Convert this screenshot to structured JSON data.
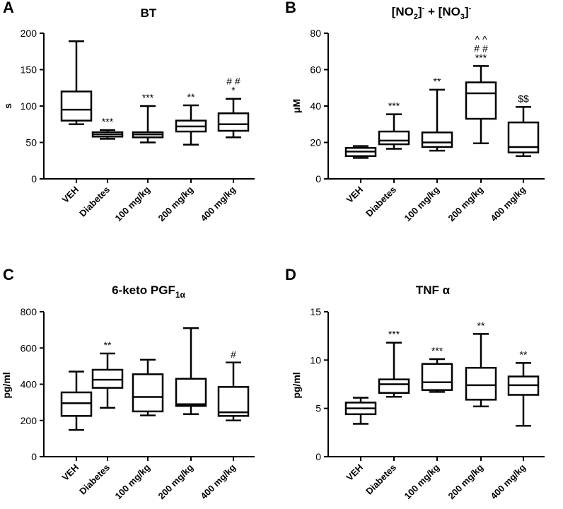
{
  "chart_data": [
    {
      "panel": "A",
      "type": "box",
      "title": "BT",
      "ylabel": "s",
      "ylim": [
        0,
        200
      ],
      "yticks": [
        "0",
        "50",
        "100",
        "150",
        "200"
      ],
      "categories": [
        "VEH",
        "Diabetes",
        "100 mg/kg",
        "200 mg/kg",
        "400 mg/kg"
      ],
      "boxes": [
        {
          "min": 75,
          "q1": 80,
          "median": 95,
          "q3": 120,
          "max": 189
        },
        {
          "min": 55,
          "q1": 58,
          "median": 61,
          "q3": 64,
          "max": 67
        },
        {
          "min": 50,
          "q1": 57,
          "median": 61,
          "q3": 64,
          "max": 100
        },
        {
          "min": 47,
          "q1": 65,
          "median": 72,
          "q3": 80,
          "max": 101
        },
        {
          "min": 57,
          "q1": 66,
          "median": 75,
          "q3": 90,
          "max": 110
        }
      ],
      "annotations": [
        {
          "category": 1,
          "lines": [
            "***"
          ]
        },
        {
          "category": 2,
          "lines": [
            "***"
          ]
        },
        {
          "category": 3,
          "lines": [
            "**"
          ]
        },
        {
          "category": 4,
          "lines": [
            "# #",
            "*"
          ]
        }
      ]
    },
    {
      "panel": "B",
      "type": "box",
      "title": "[NO2]- + [NO3]-",
      "title_parts": {
        "a": "[NO",
        "a_sub": "2",
        "b": "]",
        "b_sup": "-",
        "c": " + [NO",
        "c_sub": "3",
        "d": "]",
        "d_sup": "-"
      },
      "ylabel": "μM",
      "ylim": [
        0,
        80
      ],
      "yticks": [
        "0",
        "20",
        "40",
        "60",
        "80"
      ],
      "categories": [
        "VEH",
        "Diabetes",
        "100 mg/kg",
        "200 mg/kg",
        "400 mg/kg"
      ],
      "boxes": [
        {
          "min": 11.5,
          "q1": 12.5,
          "median": 15,
          "q3": 17,
          "max": 18
        },
        {
          "min": 16.5,
          "q1": 19,
          "median": 21,
          "q3": 26,
          "max": 35.5
        },
        {
          "min": 15.5,
          "q1": 17.5,
          "median": 20,
          "q3": 25.5,
          "max": 49
        },
        {
          "min": 19.5,
          "q1": 33,
          "median": 47,
          "q3": 53,
          "max": 62
        },
        {
          "min": 12.5,
          "q1": 14.5,
          "median": 17.5,
          "q3": 31,
          "max": 39.5
        }
      ],
      "annotations": [
        {
          "category": 1,
          "lines": [
            "***"
          ]
        },
        {
          "category": 2,
          "lines": [
            "**"
          ]
        },
        {
          "category": 3,
          "lines": [
            "^ ^",
            "# #",
            "***"
          ]
        },
        {
          "category": 4,
          "lines": [
            "$$"
          ]
        }
      ]
    },
    {
      "panel": "C",
      "type": "box",
      "title": "6-keto PGF1α",
      "title_parts": {
        "a": "6-keto PGF",
        "a_sub": "1α"
      },
      "ylabel": "pg/ml",
      "ylim": [
        0,
        800
      ],
      "yticks": [
        "0",
        "200",
        "400",
        "600",
        "800"
      ],
      "categories": [
        "VEH",
        "Diabetes",
        "100 mg/kg",
        "200 mg/kg",
        "400 mg/kg"
      ],
      "boxes": [
        {
          "min": 148,
          "q1": 225,
          "median": 295,
          "q3": 355,
          "max": 470
        },
        {
          "min": 270,
          "q1": 380,
          "median": 425,
          "q3": 480,
          "max": 570
        },
        {
          "min": 228,
          "q1": 250,
          "median": 330,
          "q3": 455,
          "max": 535
        },
        {
          "min": 235,
          "q1": 280,
          "median": 290,
          "q3": 430,
          "max": 710
        },
        {
          "min": 200,
          "q1": 225,
          "median": 245,
          "q3": 385,
          "max": 520
        }
      ],
      "annotations": [
        {
          "category": 1,
          "lines": [
            "**"
          ]
        },
        {
          "category": 4,
          "lines": [
            "#"
          ]
        }
      ]
    },
    {
      "panel": "D",
      "type": "box",
      "title": "TNF α",
      "ylabel": "pg/ml",
      "ylim": [
        0,
        15
      ],
      "yticks": [
        "0",
        "5",
        "10",
        "15"
      ],
      "categories": [
        "VEH",
        "Diabetes",
        "100 mg/kg",
        "200 mg/kg",
        "400 mg/kg"
      ],
      "boxes": [
        {
          "min": 3.4,
          "q1": 4.4,
          "median": 5.0,
          "q3": 5.6,
          "max": 6.1
        },
        {
          "min": 6.2,
          "q1": 6.6,
          "median": 7.5,
          "q3": 8.0,
          "max": 11.8
        },
        {
          "min": 6.7,
          "q1": 6.9,
          "median": 7.7,
          "q3": 9.6,
          "max": 10.1
        },
        {
          "min": 5.2,
          "q1": 5.9,
          "median": 7.4,
          "q3": 9.2,
          "max": 12.7
        },
        {
          "min": 3.2,
          "q1": 6.4,
          "median": 7.4,
          "q3": 8.3,
          "max": 9.7
        }
      ],
      "annotations": [
        {
          "category": 1,
          "lines": [
            "***"
          ]
        },
        {
          "category": 2,
          "lines": [
            "***"
          ]
        },
        {
          "category": 3,
          "lines": [
            "**"
          ]
        },
        {
          "category": 4,
          "lines": [
            "**"
          ]
        }
      ]
    }
  ]
}
